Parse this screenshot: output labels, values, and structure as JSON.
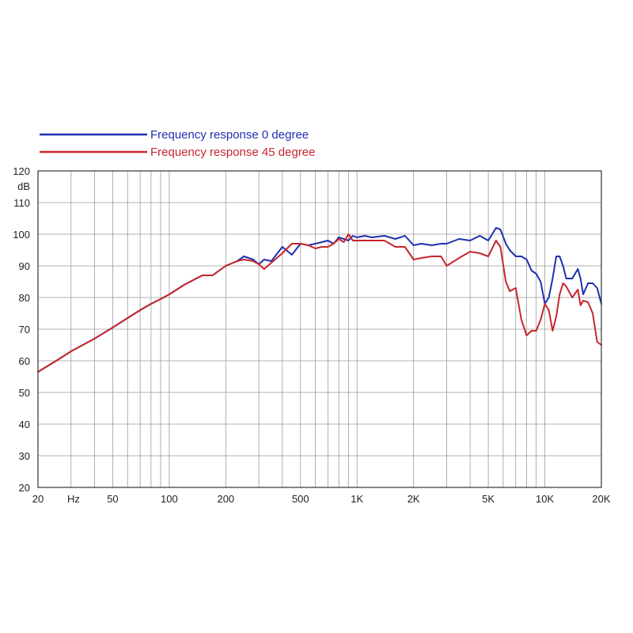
{
  "chart_data": {
    "type": "line",
    "x_scale": "log",
    "xlim": [
      20,
      20000
    ],
    "ylim": [
      20,
      120
    ],
    "ylabel": "dB",
    "xlabel": "Hz",
    "grid": true,
    "legend_position": "top-left",
    "x_ticks": [
      {
        "value": 20,
        "label": "20"
      },
      {
        "value": 50,
        "label": "50"
      },
      {
        "value": 100,
        "label": "100"
      },
      {
        "value": 200,
        "label": "200"
      },
      {
        "value": 500,
        "label": "500"
      },
      {
        "value": 1000,
        "label": "1K"
      },
      {
        "value": 2000,
        "label": "2K"
      },
      {
        "value": 5000,
        "label": "5K"
      },
      {
        "value": 10000,
        "label": "10K"
      },
      {
        "value": 20000,
        "label": "20K"
      }
    ],
    "y_ticks": [
      20,
      30,
      40,
      50,
      60,
      70,
      80,
      90,
      100,
      110,
      120
    ],
    "series": [
      {
        "name": "Frequency response 0 degree",
        "color": "#1f2fb0",
        "x": [
          20,
          25,
          30,
          40,
          50,
          60,
          70,
          80,
          90,
          100,
          120,
          150,
          170,
          200,
          230,
          250,
          280,
          300,
          320,
          350,
          400,
          450,
          500,
          550,
          600,
          650,
          700,
          750,
          800,
          850,
          900,
          950,
          1000,
          1100,
          1200,
          1400,
          1600,
          1800,
          2000,
          2200,
          2500,
          2800,
          3000,
          3500,
          4000,
          4500,
          5000,
          5500,
          5800,
          6200,
          6500,
          7000,
          7500,
          8000,
          8500,
          9000,
          9500,
          10000,
          10500,
          11000,
          11500,
          12000,
          12500,
          13000,
          14000,
          15000,
          15500,
          16000,
          17000,
          18000,
          19000,
          20000
        ],
        "y": [
          56.5,
          60,
          63,
          67,
          70.5,
          73.5,
          76,
          78,
          79.5,
          81,
          84,
          87,
          87,
          90,
          91.5,
          93,
          92,
          90.5,
          92,
          91.5,
          96,
          93.5,
          97,
          96.5,
          97,
          97.5,
          98,
          97,
          99,
          98.5,
          98,
          99.5,
          99,
          99.5,
          99,
          99.5,
          98.5,
          99.5,
          96.5,
          97,
          96.5,
          97,
          97,
          98.5,
          98,
          99.5,
          98,
          102,
          101.5,
          97,
          95,
          93,
          93,
          92,
          88.5,
          87.5,
          85,
          78,
          80,
          86,
          93,
          93,
          90,
          86,
          86,
          89,
          86,
          81,
          84.5,
          84.5,
          83,
          78
        ]
      },
      {
        "name": "Frequency response 45 degree",
        "color": "#c7262c",
        "x": [
          20,
          25,
          30,
          40,
          50,
          60,
          70,
          80,
          90,
          100,
          120,
          150,
          170,
          200,
          230,
          250,
          280,
          300,
          320,
          350,
          400,
          450,
          500,
          550,
          600,
          650,
          700,
          750,
          800,
          850,
          900,
          950,
          1000,
          1100,
          1200,
          1400,
          1600,
          1800,
          2000,
          2200,
          2500,
          2800,
          3000,
          3500,
          4000,
          4500,
          5000,
          5500,
          5800,
          6200,
          6500,
          7000,
          7500,
          8000,
          8500,
          9000,
          9500,
          10000,
          10500,
          11000,
          11500,
          12000,
          12500,
          13000,
          14000,
          15000,
          15500,
          16000,
          17000,
          18000,
          19000,
          20000
        ],
        "y": [
          56.5,
          60,
          63,
          67,
          70.5,
          73.5,
          76,
          78,
          79.5,
          81,
          84,
          87,
          87,
          90,
          91.5,
          92,
          91.5,
          90.5,
          89,
          91,
          94,
          97,
          97,
          96.5,
          95.5,
          96,
          96,
          97,
          98.5,
          97.5,
          100,
          98,
          98,
          98,
          98,
          98,
          96,
          96,
          92,
          92.5,
          93,
          93,
          90,
          92.5,
          94.5,
          94,
          93,
          98,
          96,
          85,
          82,
          83,
          73,
          68,
          69.5,
          69.5,
          73,
          78,
          76,
          69.5,
          74,
          81,
          84.5,
          83.5,
          80,
          82.5,
          77.5,
          79,
          78.5,
          75,
          66,
          65
        ]
      }
    ]
  },
  "legend": {
    "items": [
      {
        "label": "Frequency response 0 degree",
        "color": "#1f2fb0"
      },
      {
        "label": "Frequency response 45 degree",
        "color": "#c7262c"
      }
    ]
  }
}
